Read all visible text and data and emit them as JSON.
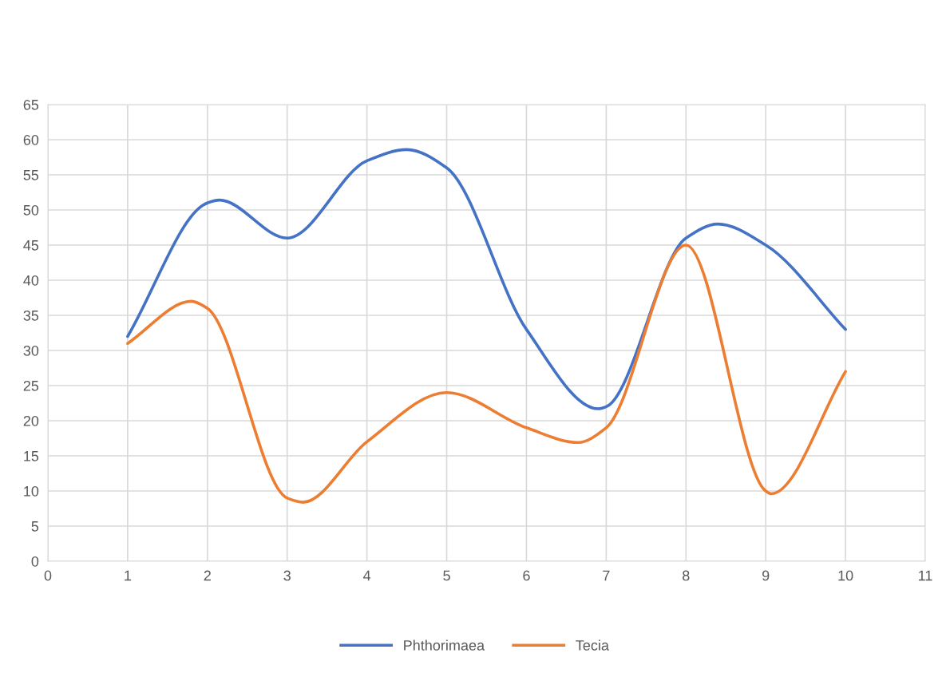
{
  "chart_data": {
    "type": "line",
    "series": [
      {
        "name": "Phthorimaea",
        "color": "#4472c4",
        "x": [
          1,
          2,
          2.15,
          3,
          4,
          4.5,
          5,
          6,
          6.9,
          7,
          8,
          8.4,
          9,
          10
        ],
        "values": [
          32,
          51,
          51.4,
          46,
          57,
          58.6,
          56,
          33,
          21.7,
          22,
          46,
          48,
          45,
          33
        ]
      },
      {
        "name": "Tecia",
        "color": "#ed7d31",
        "x": [
          1,
          1.8,
          2,
          3,
          3.2,
          4,
          5,
          6,
          6.65,
          7,
          8,
          9,
          9.07,
          10
        ],
        "values": [
          31,
          37,
          36,
          9,
          8.4,
          17,
          24,
          19,
          16.9,
          19,
          45,
          10,
          9.6,
          27
        ]
      }
    ],
    "xlim": [
      0,
      11
    ],
    "xticks": [
      0,
      1,
      2,
      3,
      4,
      5,
      6,
      7,
      8,
      9,
      10,
      11
    ],
    "ylim": [
      0,
      65
    ],
    "yticks": [
      0,
      5,
      10,
      15,
      20,
      25,
      30,
      35,
      40,
      45,
      50,
      55,
      60,
      65
    ],
    "grid": true,
    "legend": "bottom",
    "marker": "none",
    "line_style": "solid"
  }
}
